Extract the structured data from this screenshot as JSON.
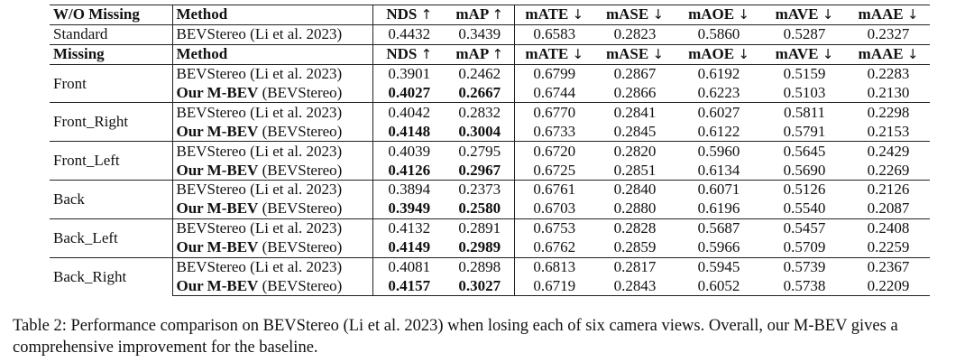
{
  "table": {
    "wo_missing_header": {
      "group": "W/O Missing",
      "method": "Method",
      "metrics": [
        "NDS ↑",
        "mAP ↑",
        "mATE ↓",
        "mASE ↓",
        "mAOE ↓",
        "mAVE ↓",
        "mAAE ↓"
      ]
    },
    "standard": {
      "group": "Standard",
      "method": "BEVStereo (Li et al. 2023)",
      "values": [
        "0.4432",
        "0.3439",
        "0.6583",
        "0.2823",
        "0.5860",
        "0.5287",
        "0.2327"
      ]
    },
    "missing_header": {
      "group": "Missing",
      "method": "Method",
      "metrics": [
        "NDS ↑",
        "mAP ↑",
        "mATE ↓",
        "mASE ↓",
        "mAOE ↓",
        "mAVE ↓",
        "mAAE ↓"
      ]
    },
    "groups": [
      {
        "name": "Front",
        "baseline": {
          "method": "BEVStereo (Li et al. 2023)",
          "values": [
            "0.3901",
            "0.2462",
            "0.6799",
            "0.2867",
            "0.6192",
            "0.5159",
            "0.2283"
          ]
        },
        "ours": {
          "method_bold": "Our M-BEV",
          "method_rest": " (BEVStereo)",
          "values": [
            "0.4027",
            "0.2667",
            "0.6744",
            "0.2866",
            "0.6223",
            "0.5103",
            "0.2130"
          ]
        }
      },
      {
        "name": "Front_Right",
        "baseline": {
          "method": "BEVStereo (Li et al. 2023)",
          "values": [
            "0.4042",
            "0.2832",
            "0.6770",
            "0.2841",
            "0.6027",
            "0.5811",
            "0.2298"
          ]
        },
        "ours": {
          "method_bold": "Our M-BEV",
          "method_rest": " (BEVStereo)",
          "values": [
            "0.4148",
            "0.3004",
            "0.6733",
            "0.2845",
            "0.6122",
            "0.5791",
            "0.2153"
          ]
        }
      },
      {
        "name": "Front_Left",
        "baseline": {
          "method": "BEVStereo (Li et al. 2023)",
          "values": [
            "0.4039",
            "0.2795",
            "0.6720",
            "0.2820",
            "0.5960",
            "0.5645",
            "0.2429"
          ]
        },
        "ours": {
          "method_bold": "Our M-BEV",
          "method_rest": " (BEVStereo)",
          "values": [
            "0.4126",
            "0.2967",
            "0.6725",
            "0.2851",
            "0.6134",
            "0.5690",
            "0.2269"
          ]
        }
      },
      {
        "name": "Back",
        "baseline": {
          "method": "BEVStereo (Li et al. 2023)",
          "values": [
            "0.3894",
            "0.2373",
            "0.6761",
            "0.2840",
            "0.6071",
            "0.5126",
            "0.2126"
          ]
        },
        "ours": {
          "method_bold": "Our M-BEV",
          "method_rest": " (BEVStereo)",
          "values": [
            "0.3949",
            "0.2580",
            "0.6703",
            "0.2880",
            "0.6196",
            "0.5540",
            "0.2087"
          ]
        }
      },
      {
        "name": "Back_Left",
        "baseline": {
          "method": "BEVStereo (Li et al. 2023)",
          "values": [
            "0.4132",
            "0.2891",
            "0.6753",
            "0.2828",
            "0.5687",
            "0.5457",
            "0.2408"
          ]
        },
        "ours": {
          "method_bold": "Our M-BEV",
          "method_rest": " (BEVStereo)",
          "values": [
            "0.4149",
            "0.2989",
            "0.6762",
            "0.2859",
            "0.5966",
            "0.5709",
            "0.2259"
          ]
        }
      },
      {
        "name": "Back_Right",
        "baseline": {
          "method": "BEVStereo (Li et al. 2023)",
          "values": [
            "0.4081",
            "0.2898",
            "0.6813",
            "0.2817",
            "0.5945",
            "0.5739",
            "0.2367"
          ]
        },
        "ours": {
          "method_bold": "Our M-BEV",
          "method_rest": " (BEVStereo)",
          "values": [
            "0.4157",
            "0.3027",
            "0.6719",
            "0.2843",
            "0.6052",
            "0.5738",
            "0.2209"
          ]
        }
      }
    ],
    "bold_value_columns": [
      0,
      1
    ]
  },
  "caption": "Table 2: Performance comparison on BEVStereo (Li et al. 2023) when losing each of six camera views. Overall, our M-BEV gives a comprehensive improvement for the baseline."
}
